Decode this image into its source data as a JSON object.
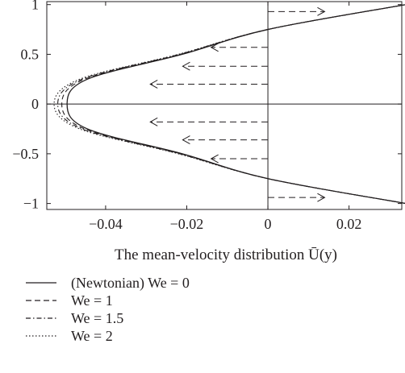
{
  "chart_data": {
    "type": "line",
    "xlabel": "The mean-velocity distribution Ū(y)",
    "ylabel": "",
    "xlim": [
      -0.0545,
      0.033
    ],
    "ylim": [
      -1.06,
      1.03
    ],
    "x_ticks": [
      -0.04,
      -0.02,
      0,
      0.02
    ],
    "x_tick_labels": [
      "−0.04",
      "−0.02",
      "0",
      "0.02"
    ],
    "y_ticks": [
      -1,
      -0.5,
      0,
      0.5,
      1
    ],
    "y_tick_labels": [
      "−1",
      "−0.5",
      "0",
      "0.5",
      "1"
    ],
    "grid": false,
    "legend_position": "below",
    "series": [
      {
        "name": "(Newtonian) We = 0",
        "style": "solid",
        "y": [
          -1,
          -0.75,
          -0.5,
          -0.25,
          0,
          0.25,
          0.5,
          0.75,
          1
        ],
        "x": [
          0.034,
          0,
          -0.0211,
          -0.0445,
          -0.0495,
          -0.0445,
          -0.0211,
          0,
          0.034
        ]
      },
      {
        "name": "We = 1",
        "style": "dashed",
        "y": [
          -1,
          -0.75,
          -0.5,
          -0.25,
          0,
          0.25,
          0.5,
          0.75,
          1
        ],
        "x": [
          0.034,
          0,
          -0.0215,
          -0.0452,
          -0.0508,
          -0.0452,
          -0.0215,
          0,
          0.034
        ]
      },
      {
        "name": "We = 1.5",
        "style": "dashdot",
        "y": [
          -1,
          -0.75,
          -0.5,
          -0.25,
          0,
          0.25,
          0.5,
          0.75,
          1
        ],
        "x": [
          0.034,
          0,
          -0.0218,
          -0.0458,
          -0.0518,
          -0.0458,
          -0.0218,
          0,
          0.034
        ]
      },
      {
        "name": "We = 2",
        "style": "dotted",
        "y": [
          -1,
          -0.75,
          -0.5,
          -0.25,
          0,
          0.25,
          0.5,
          0.75,
          1
        ],
        "x": [
          0.034,
          0,
          -0.0221,
          -0.0464,
          -0.0527,
          -0.0464,
          -0.0221,
          0,
          0.034
        ]
      }
    ],
    "flow_arrows": [
      {
        "y": 0.93,
        "x_tail": 0,
        "x_head": 0.014
      },
      {
        "y": 0.57,
        "x_tail": 0,
        "x_head": -0.014
      },
      {
        "y": 0.38,
        "x_tail": 0,
        "x_head": -0.021
      },
      {
        "y": 0.2,
        "x_tail": 0,
        "x_head": -0.029
      },
      {
        "y": -0.18,
        "x_tail": 0,
        "x_head": -0.029
      },
      {
        "y": -0.36,
        "x_tail": 0,
        "x_head": -0.021
      },
      {
        "y": -0.55,
        "x_tail": 0,
        "x_head": -0.014
      },
      {
        "y": -0.94,
        "x_tail": 0,
        "x_head": 0.014
      }
    ]
  },
  "colors": {
    "ink": "#231f20",
    "background": "#ffffff"
  }
}
